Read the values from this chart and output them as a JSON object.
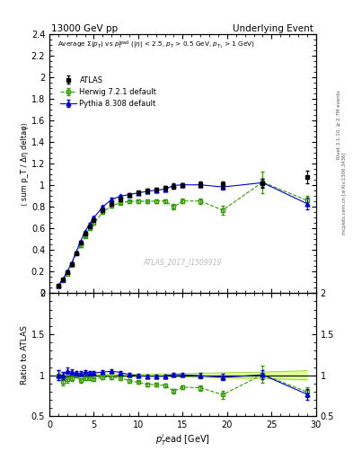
{
  "title_left": "13000 GeV pp",
  "title_right": "Underlying Event",
  "right_label1": "Rivet 3.1.10, ≥ 2.7M events",
  "right_label2": "mcplots.cern.ch [arXiv:1306.3436]",
  "annotation": "ATLAS_2017_I1509919",
  "ylabel_main": "⟨ sum p_T / Δη deltaφ⟩",
  "ylabel_ratio": "Ratio to ATLAS",
  "xlabel": "p_T^lead [GeV]",
  "ylim_main": [
    0,
    2.4
  ],
  "ylim_ratio": [
    0.5,
    2.0
  ],
  "yticks_main": [
    0.0,
    0.2,
    0.4,
    0.6,
    0.8,
    1.0,
    1.2,
    1.4,
    1.6,
    1.8,
    2.0,
    2.2,
    2.4
  ],
  "yticks_ratio": [
    0.5,
    1.0,
    1.5,
    2.0
  ],
  "xlim": [
    0,
    30
  ],
  "xticks": [
    0,
    5,
    10,
    15,
    20,
    25,
    30
  ],
  "atlas_x": [
    1.0,
    1.5,
    2.0,
    2.5,
    3.0,
    3.5,
    4.0,
    4.5,
    5.0,
    6.0,
    7.0,
    8.0,
    9.0,
    10.0,
    11.0,
    12.0,
    13.0,
    14.0,
    15.0,
    17.0,
    19.5,
    24.0,
    29.0
  ],
  "atlas_y": [
    0.07,
    0.13,
    0.19,
    0.27,
    0.37,
    0.47,
    0.55,
    0.62,
    0.68,
    0.77,
    0.83,
    0.87,
    0.91,
    0.935,
    0.955,
    0.965,
    0.975,
    0.99,
    1.0,
    1.01,
    1.01,
    1.02,
    1.08
  ],
  "atlas_yerr": [
    0.003,
    0.004,
    0.005,
    0.006,
    0.007,
    0.008,
    0.009,
    0.009,
    0.01,
    0.011,
    0.012,
    0.012,
    0.013,
    0.013,
    0.014,
    0.015,
    0.016,
    0.017,
    0.018,
    0.025,
    0.03,
    0.04,
    0.06
  ],
  "herwig_x": [
    1.0,
    1.5,
    2.0,
    2.5,
    3.0,
    3.5,
    4.0,
    4.5,
    5.0,
    6.0,
    7.0,
    8.0,
    9.0,
    10.0,
    11.0,
    12.0,
    13.0,
    14.0,
    15.0,
    17.0,
    19.5,
    24.0,
    29.0
  ],
  "herwig_y": [
    0.07,
    0.12,
    0.18,
    0.26,
    0.37,
    0.44,
    0.53,
    0.6,
    0.65,
    0.75,
    0.81,
    0.84,
    0.85,
    0.855,
    0.85,
    0.855,
    0.855,
    0.8,
    0.855,
    0.855,
    0.77,
    1.03,
    0.86
  ],
  "herwig_yerr": [
    0.003,
    0.005,
    0.006,
    0.007,
    0.008,
    0.009,
    0.01,
    0.011,
    0.012,
    0.013,
    0.014,
    0.015,
    0.015,
    0.016,
    0.016,
    0.017,
    0.018,
    0.025,
    0.02,
    0.025,
    0.04,
    0.1,
    0.04
  ],
  "pythia_x": [
    1.0,
    1.5,
    2.0,
    2.5,
    3.0,
    3.5,
    4.0,
    4.5,
    5.0,
    6.0,
    7.0,
    8.0,
    9.0,
    10.0,
    11.0,
    12.0,
    13.0,
    14.0,
    15.0,
    17.0,
    19.5,
    24.0,
    29.0
  ],
  "pythia_y": [
    0.07,
    0.13,
    0.2,
    0.28,
    0.38,
    0.48,
    0.57,
    0.64,
    0.7,
    0.8,
    0.87,
    0.9,
    0.915,
    0.93,
    0.945,
    0.955,
    0.965,
    1.0,
    1.005,
    1.005,
    0.985,
    1.025,
    0.83
  ],
  "pythia_yerr": [
    0.003,
    0.004,
    0.005,
    0.006,
    0.007,
    0.008,
    0.009,
    0.009,
    0.01,
    0.011,
    0.012,
    0.012,
    0.013,
    0.013,
    0.014,
    0.015,
    0.015,
    0.016,
    0.017,
    0.02,
    0.025,
    0.04,
    0.055
  ],
  "atlas_color": "#000000",
  "herwig_color": "#339900",
  "pythia_color": "#0000cc",
  "band_color": "#ddff99",
  "band_edge_color": "#99cc33",
  "legend_labels": [
    "ATLAS",
    "Herwig 7.2.1 default",
    "Pythia 8.308 default"
  ]
}
